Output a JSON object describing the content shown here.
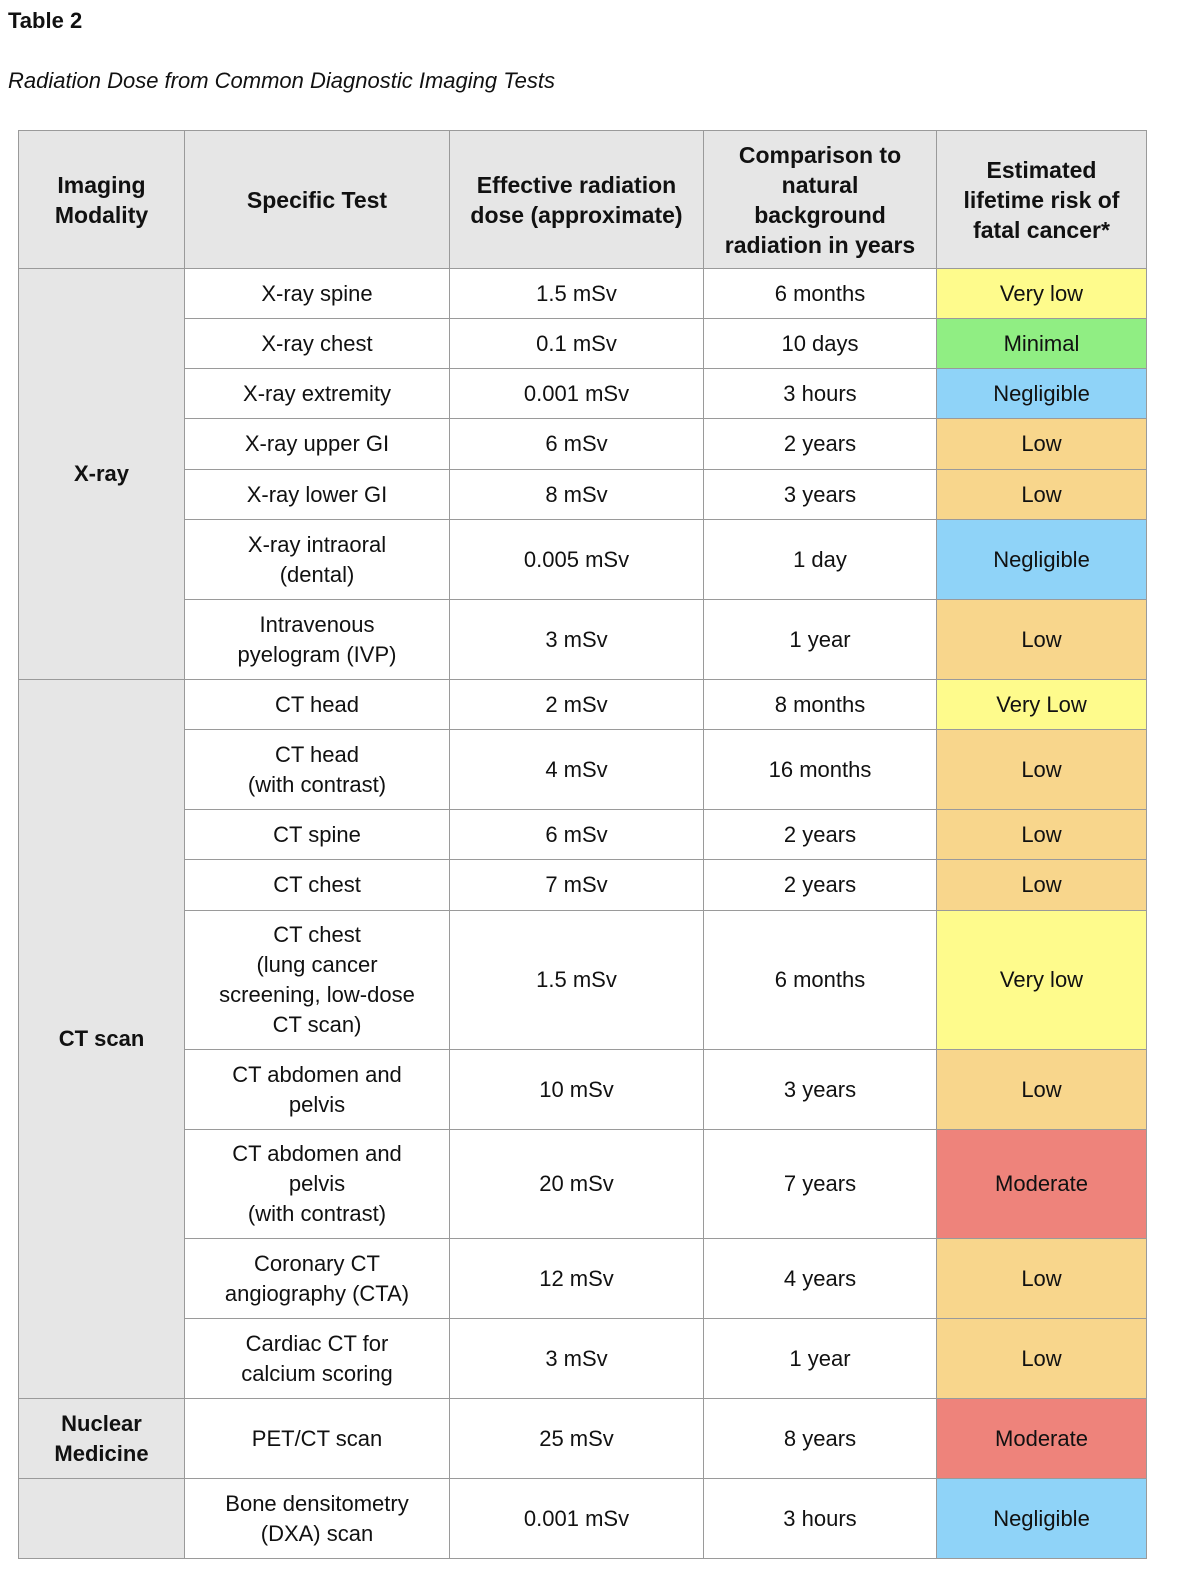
{
  "document": {
    "label": "Table 2",
    "title": "Radiation Dose from Common Diagnostic Imaging Tests"
  },
  "colors": {
    "header_bg": "#e6e6e6",
    "risk": {
      "very_low": "#fefb8c",
      "minimal": "#90ee83",
      "negligible": "#8fd3f8",
      "low": "#f8d68c",
      "moderate": "#ee837b"
    }
  },
  "table": {
    "headers": [
      "Imaging\nModality",
      "Specific Test",
      "Effective radiation\ndose (approximate)",
      "Comparison to\nnatural\nbackground\nradiation in years",
      "Estimated\nlifetime risk of\nfatal cancer*"
    ],
    "groups": [
      {
        "modality": "X-ray",
        "rows": [
          {
            "test": "X-ray spine",
            "dose": "1.5 mSv",
            "comparison": "6 months",
            "risk": "Very low",
            "risk_level": "very_low"
          },
          {
            "test": "X-ray chest",
            "dose": "0.1 mSv",
            "comparison": "10 days",
            "risk": "Minimal",
            "risk_level": "minimal"
          },
          {
            "test": "X-ray extremity",
            "dose": "0.001 mSv",
            "comparison": "3 hours",
            "risk": "Negligible",
            "risk_level": "negligible"
          },
          {
            "test": "X-ray upper GI",
            "dose": "6 mSv",
            "comparison": "2 years",
            "risk": "Low",
            "risk_level": "low"
          },
          {
            "test": "X-ray lower GI",
            "dose": "8 mSv",
            "comparison": "3 years",
            "risk": "Low",
            "risk_level": "low"
          },
          {
            "test": "X-ray intraoral\n(dental)",
            "dose": "0.005 mSv",
            "comparison": "1 day",
            "risk": "Negligible",
            "risk_level": "negligible"
          },
          {
            "test": "Intravenous\npyelogram (IVP)",
            "dose": "3 mSv",
            "comparison": "1 year",
            "risk": "Low",
            "risk_level": "low"
          }
        ]
      },
      {
        "modality": "CT scan",
        "rows": [
          {
            "test": "CT head",
            "dose": "2 mSv",
            "comparison": "8 months",
            "risk": "Very Low",
            "risk_level": "very_low"
          },
          {
            "test": "CT head\n(with contrast)",
            "dose": "4 mSv",
            "comparison": "16 months",
            "risk": "Low",
            "risk_level": "low"
          },
          {
            "test": "CT spine",
            "dose": "6 mSv",
            "comparison": "2 years",
            "risk": "Low",
            "risk_level": "low"
          },
          {
            "test": "CT chest",
            "dose": "7 mSv",
            "comparison": "2 years",
            "risk": "Low",
            "risk_level": "low"
          },
          {
            "test": "CT chest\n(lung cancer\nscreening, low-dose\nCT scan)",
            "dose": "1.5 mSv",
            "comparison": "6 months",
            "risk": "Very low",
            "risk_level": "very_low"
          },
          {
            "test": "CT abdomen and\npelvis",
            "dose": "10 mSv",
            "comparison": "3 years",
            "risk": "Low",
            "risk_level": "low"
          },
          {
            "test": "CT abdomen and\npelvis\n(with contrast)",
            "dose": "20 mSv",
            "comparison": "7 years",
            "risk": "Moderate",
            "risk_level": "moderate"
          },
          {
            "test": "Coronary CT\nangiography (CTA)",
            "dose": "12 mSv",
            "comparison": "4 years",
            "risk": "Low",
            "risk_level": "low"
          },
          {
            "test": "Cardiac CT for\ncalcium scoring",
            "dose": "3 mSv",
            "comparison": "1 year",
            "risk": "Low",
            "risk_level": "low"
          }
        ]
      },
      {
        "modality": "Nuclear\nMedicine",
        "rows": [
          {
            "test": "PET/CT scan",
            "dose": "25 mSv",
            "comparison": "8 years",
            "risk": "Moderate",
            "risk_level": "moderate"
          }
        ]
      },
      {
        "modality": "",
        "rows": [
          {
            "test": "Bone densitometry\n(DXA) scan",
            "dose": "0.001 mSv",
            "comparison": "3 hours",
            "risk": "Negligible",
            "risk_level": "negligible"
          }
        ]
      }
    ]
  }
}
